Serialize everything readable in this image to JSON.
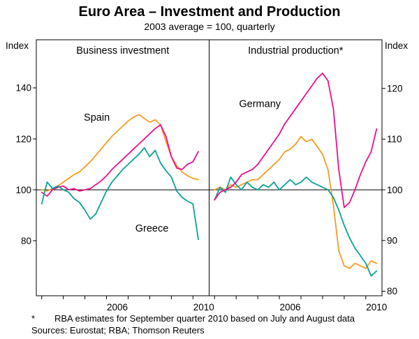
{
  "chart_data": {
    "type": "line",
    "title": "Euro Area – Investment and Production",
    "subtitle": "2003 average = 100, quarterly",
    "footnote_marker": "*",
    "footnote": "RBA estimates for September quarter 2010 based on July and August data",
    "sources": "Sources: Eurostat; RBA; Thomson Reuters",
    "reference_line": 100,
    "x": {
      "range": [
        2002.75,
        2010.75
      ],
      "start": 2003.0,
      "step": 0.25,
      "year_ticks": [
        2003,
        2004,
        2005,
        2006,
        2007,
        2008,
        2009,
        2010
      ],
      "tick_labels": [
        {
          "t": 2006.5,
          "text": "2006"
        },
        {
          "t": 2010.5,
          "text": "2010"
        }
      ]
    },
    "panels": [
      {
        "title": "Business investment",
        "axis_side": "left",
        "axis_label": "Index",
        "ylim": [
          58.4,
          158.9
        ],
        "ticks": [
          80,
          100,
          120,
          140
        ],
        "series": [
          {
            "name": "Spain",
            "color": "#F59C22",
            "label": {
              "t": 2005.55,
              "v": 128.5
            },
            "values": [
              100,
              99.5,
              100.5,
              101.5,
              103,
              104.5,
              106,
              107,
              109,
              111,
              113.5,
              116,
              118.5,
              121,
              123,
              125,
              127,
              128.5,
              129.5,
              128,
              126.5,
              127.5,
              125.5,
              119,
              113,
              109.5,
              107,
              105.5,
              104.5,
              104
            ]
          },
          {
            "name": "Germany",
            "color": "#EC0E8E",
            "label": null,
            "values": [
              99,
              97.5,
              100,
              101,
              101.5,
              100,
              100.5,
              99.5,
              100,
              100.5,
              102,
              103.5,
              105.5,
              108,
              110,
              112,
              114,
              116,
              118,
              120,
              122,
              124,
              125.5,
              121,
              113,
              108.5,
              108,
              110,
              111,
              115
            ]
          },
          {
            "name": "Greece",
            "color": "#0CA295",
            "label": {
              "t": 2008.1,
              "v": 85
            },
            "values": [
              94.5,
              103,
              100.5,
              101.5,
              100,
              99,
              96.5,
              95,
              92,
              88.5,
              90.5,
              95,
              99.5,
              103,
              105.5,
              108,
              110,
              112,
              114,
              116.5,
              113,
              115.5,
              110.5,
              107.5,
              105,
              99.5,
              97,
              95.5,
              94.5,
              80.5
            ]
          }
        ]
      },
      {
        "title": "Industrial production*",
        "axis_side": "right",
        "axis_label": "Index",
        "ylim": [
          79.1,
          129.6
        ],
        "ticks": [
          80,
          90,
          100,
          110,
          120
        ],
        "series": [
          {
            "name": "Spain",
            "color": "#F59C22",
            "label": null,
            "values": [
              100,
              100.5,
              100,
              101,
              100.5,
              101,
              101.5,
              102,
              102,
              103,
              104,
              105,
              106,
              107.5,
              108,
              109,
              110.5,
              109.5,
              110,
              108.5,
              107,
              104,
              97,
              88,
              85,
              84.5,
              85.5,
              85,
              84.5,
              86,
              85.5
            ]
          },
          {
            "name": "Greece",
            "color": "#0CA295",
            "label": null,
            "values": [
              98,
              100.5,
              99.5,
              102.5,
              101,
              100,
              101.5,
              100.5,
              100,
              101,
              100.5,
              101.5,
              100,
              101,
              102,
              101,
              101.5,
              102.5,
              101.5,
              101,
              100.5,
              100,
              98.5,
              96,
              93,
              90.5,
              88.5,
              87,
              85.5,
              83,
              84
            ]
          },
          {
            "name": "Germany",
            "color": "#EC0E8E",
            "label": {
              "t": 2005.1,
              "v": 117
            },
            "values": [
              98,
              99.5,
              100,
              100.5,
              101.5,
              103,
              103.5,
              104,
              105,
              106.5,
              108,
              109.5,
              111,
              113,
              114.5,
              116,
              117.5,
              119,
              120.5,
              122,
              123,
              121.5,
              116,
              104,
              96.5,
              97.5,
              100,
              103,
              105.5,
              107.5,
              112
            ]
          }
        ]
      }
    ]
  }
}
